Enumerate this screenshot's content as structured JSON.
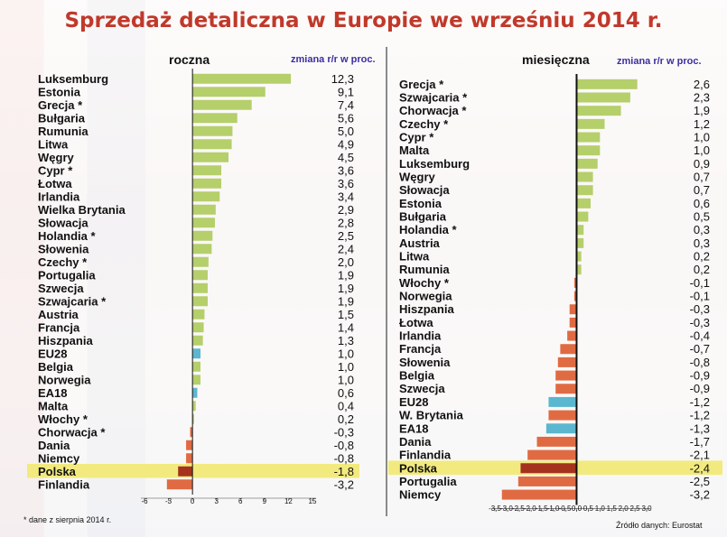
{
  "title": "Sprzedaż detaliczna w Europie we wrześniu 2014 r.",
  "note": "* dane z sierpnia 2014 r.",
  "source": "Źródło danych: Eurostat",
  "colors": {
    "positive": "#b5cf6b",
    "negative": "#e06b43",
    "aggregate": "#5bb7cf",
    "poland_bar": "#a4321c",
    "poland_highlight": "#f2ea7e",
    "title": "#c0392b",
    "unit_label": "#3b2fa0"
  },
  "chart_data": [
    {
      "type": "bar",
      "orientation": "horizontal",
      "title": "roczna",
      "unit_label": "zmiana r/r w proc.",
      "xlim": [
        -6,
        15
      ],
      "xticks": [
        "-6",
        "-3",
        "0",
        "3",
        "6",
        "9",
        "12",
        "15"
      ],
      "highlight": "Polska",
      "aggregates": [
        "EU28",
        "EA18"
      ],
      "categories": [
        "Luksemburg",
        "Estonia",
        "Grecja *",
        "Bułgaria",
        "Rumunia",
        "Litwa",
        "Węgry",
        "Cypr *",
        "Łotwa",
        "Irlandia",
        "Wielka Brytania",
        "Słowacja",
        "Holandia *",
        "Słowenia",
        "Czechy *",
        "Portugalia",
        "Szwecja",
        "Szwajcaria *",
        "Austria",
        "Francja",
        "Hiszpania",
        "EU28",
        "Belgia",
        "Norwegia",
        "EA18",
        "Malta",
        "Włochy *",
        "Chorwacja *",
        "Dania",
        "Niemcy",
        "Polska",
        "Finlandia"
      ],
      "values": [
        12.3,
        9.1,
        7.4,
        5.6,
        5.0,
        4.9,
        4.5,
        3.6,
        3.6,
        3.4,
        2.9,
        2.8,
        2.5,
        2.4,
        2.0,
        1.9,
        1.9,
        1.9,
        1.5,
        1.4,
        1.3,
        1.0,
        1.0,
        1.0,
        0.6,
        0.4,
        0.2,
        -0.3,
        -0.8,
        -0.8,
        -1.8,
        -3.2
      ],
      "value_labels": [
        "12,3",
        "9,1",
        "7,4",
        "5,6",
        "5,0",
        "4,9",
        "4,5",
        "3,6",
        "3,6",
        "3,4",
        "2,9",
        "2,8",
        "2,5",
        "2,4",
        "2,0",
        "1,9",
        "1,9",
        "1,9",
        "1,5",
        "1,4",
        "1,3",
        "1,0",
        "1,0",
        "1,0",
        "0,6",
        "0,4",
        "0,2",
        "-0,3",
        "-0,8",
        "-0,8",
        "-1,8",
        "-3,2"
      ]
    },
    {
      "type": "bar",
      "orientation": "horizontal",
      "title": "miesięczna",
      "unit_label": "zmiana r/r w proc.",
      "xlim": [
        -3.5,
        3.0
      ],
      "xticks": [
        "-3,5",
        "-3,0",
        "-2,5",
        "-2,0",
        "-1,5",
        "-1,0",
        "-0,5",
        "0,0",
        "0,5",
        "1,0",
        "1,5",
        "2,0",
        "2,5",
        "3,0"
      ],
      "highlight": "Polska",
      "aggregates": [
        "EU28",
        "EA18"
      ],
      "categories": [
        "Grecja *",
        "Szwajcaria *",
        "Chorwacja *",
        "Czechy *",
        "Cypr *",
        "Malta",
        "Luksemburg",
        "Węgry",
        "Słowacja",
        "Estonia",
        "Bułgaria",
        "Holandia *",
        "Austria",
        "Litwa",
        "Rumunia",
        "Włochy *",
        "Norwegia",
        "Hiszpania",
        "Łotwa",
        "Irlandia",
        "Francja",
        "Słowenia",
        "Belgia",
        "Szwecja",
        "EU28",
        "W. Brytania",
        "EA18",
        "Dania",
        "Finlandia",
        "Polska",
        "Portugalia",
        "Niemcy"
      ],
      "values": [
        2.6,
        2.3,
        1.9,
        1.2,
        1.0,
        1.0,
        0.9,
        0.7,
        0.7,
        0.6,
        0.5,
        0.3,
        0.3,
        0.2,
        0.2,
        -0.1,
        -0.1,
        -0.3,
        -0.3,
        -0.4,
        -0.7,
        -0.8,
        -0.9,
        -0.9,
        -1.2,
        -1.2,
        -1.3,
        -1.7,
        -2.1,
        -2.4,
        -2.5,
        -3.2
      ],
      "value_labels": [
        "2,6",
        "2,3",
        "1,9",
        "1,2",
        "1,0",
        "1,0",
        "0,9",
        "0,7",
        "0,7",
        "0,6",
        "0,5",
        "0,3",
        "0,3",
        "0,2",
        "0,2",
        "-0,1",
        "-0,1",
        "-0,3",
        "-0,3",
        "-0,4",
        "-0,7",
        "-0,8",
        "-0,9",
        "-0,9",
        "-1,2",
        "-1,2",
        "-1,3",
        "-1,7",
        "-2,1",
        "-2,4",
        "-2,5",
        "-3,2"
      ]
    }
  ]
}
